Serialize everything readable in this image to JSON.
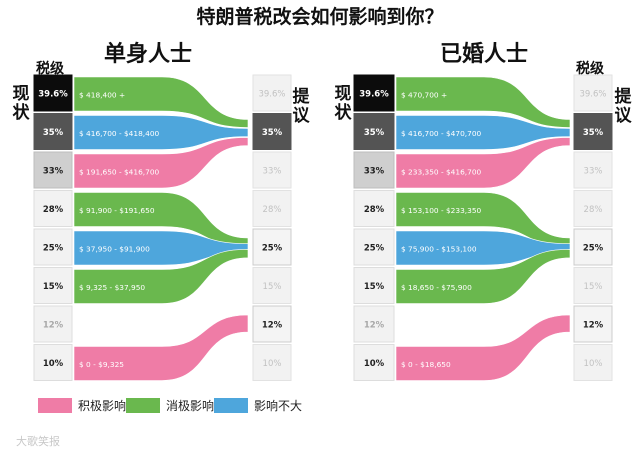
{
  "title": "特朗普税改会如何影响到你？",
  "panels": [
    {
      "title": "单身人士",
      "left_label": "税级",
      "current_label": "现状",
      "proposal_label": "提议",
      "current_rates": [
        "39.6%",
        "35%",
        "33%",
        "28%",
        "25%",
        "15%",
        "12%",
        "10%"
      ],
      "proposed_rates": [
        "39.6%",
        "35%",
        "33%",
        "28%",
        "25%",
        "15%",
        "12%",
        "10%"
      ],
      "bands": [
        {
          "from": 0,
          "to": 1,
          "effect": "negative",
          "range": "$ 418,400 +"
        },
        {
          "from": 1,
          "to": 1,
          "effect": "neutral",
          "range": "$ 416,700 - $418,400"
        },
        {
          "from": 2,
          "to": 1,
          "effect": "positive",
          "range": "$ 191,650 - $416,700"
        },
        {
          "from": 3,
          "to": 4,
          "effect": "negative",
          "range": "$ 91,900 - $191,650"
        },
        {
          "from": 4,
          "to": 4,
          "effect": "neutral",
          "range": "$ 37,950 - $91,900"
        },
        {
          "from": 5,
          "to": 4,
          "effect": "negative",
          "range": "$ 9,325 - $37,950"
        },
        {
          "from": 7,
          "to": 6,
          "effect": "positive",
          "range": "$ 0 - $9,325"
        }
      ]
    },
    {
      "title": "已婚人士",
      "left_label": "税级",
      "current_label": "现状",
      "proposal_label": "提议",
      "current_rates": [
        "39.6%",
        "35%",
        "33%",
        "28%",
        "25%",
        "15%",
        "12%",
        "10%"
      ],
      "proposed_rates": [
        "39.6%",
        "35%",
        "33%",
        "28%",
        "25%",
        "15%",
        "12%",
        "10%"
      ],
      "bands": [
        {
          "from": 0,
          "to": 1,
          "effect": "negative",
          "range": "$ 470,700 +"
        },
        {
          "from": 1,
          "to": 1,
          "effect": "neutral",
          "range": "$ 416,700 - $470,700"
        },
        {
          "from": 2,
          "to": 1,
          "effect": "positive",
          "range": "$ 233,350 - $416,700"
        },
        {
          "from": 3,
          "to": 4,
          "effect": "negative",
          "range": "$ 153,100 - $233,350"
        },
        {
          "from": 4,
          "to": 4,
          "effect": "neutral",
          "range": "$ 75,900 - $153,100"
        },
        {
          "from": 5,
          "to": 4,
          "effect": "negative",
          "range": "$ 18,650 - $75,900"
        },
        {
          "from": 7,
          "to": 6,
          "effect": "positive",
          "range": "$ 0 - $18,650"
        }
      ]
    }
  ],
  "emphasis": {
    "current_highlight": [
      0,
      1,
      2
    ],
    "proposed_active": [
      1,
      4,
      6
    ]
  },
  "legend": [
    {
      "label": "积极影响",
      "effect": "positive"
    },
    {
      "label": "消极影响",
      "effect": "negative"
    },
    {
      "label": "影响不大",
      "effect": "neutral"
    }
  ],
  "colors": {
    "positive": "#ef7ca6",
    "negative": "#6ab84e",
    "neutral": "#4ea6dc",
    "top_bracket": "#0c0c0c",
    "dark_bracket": "#545454",
    "mid_bracket": "#cfcfcf",
    "light_bracket": "#f2f2f2"
  },
  "watermark": "大歌笑报"
}
